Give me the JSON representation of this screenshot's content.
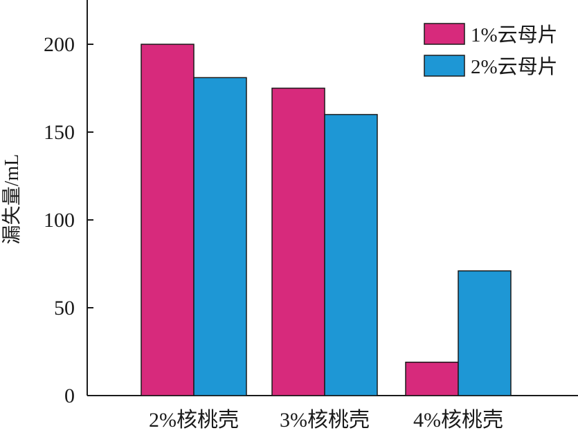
{
  "chart_data": {
    "type": "bar",
    "title": "",
    "xlabel": "",
    "ylabel": "漏失量/mL",
    "categories": [
      "2%核桃壳",
      "3%核桃壳",
      "4%核桃壳"
    ],
    "series": [
      {
        "name": "1%云母片",
        "values": [
          200,
          175,
          19
        ],
        "color": "#d72a7c"
      },
      {
        "name": "2%云母片",
        "values": [
          181,
          160,
          71
        ],
        "color": "#1e97d5"
      }
    ],
    "ylim": [
      0,
      225
    ],
    "yticks": [
      0,
      50,
      100,
      150,
      200
    ],
    "legend_position": "top-right",
    "grid": false
  }
}
